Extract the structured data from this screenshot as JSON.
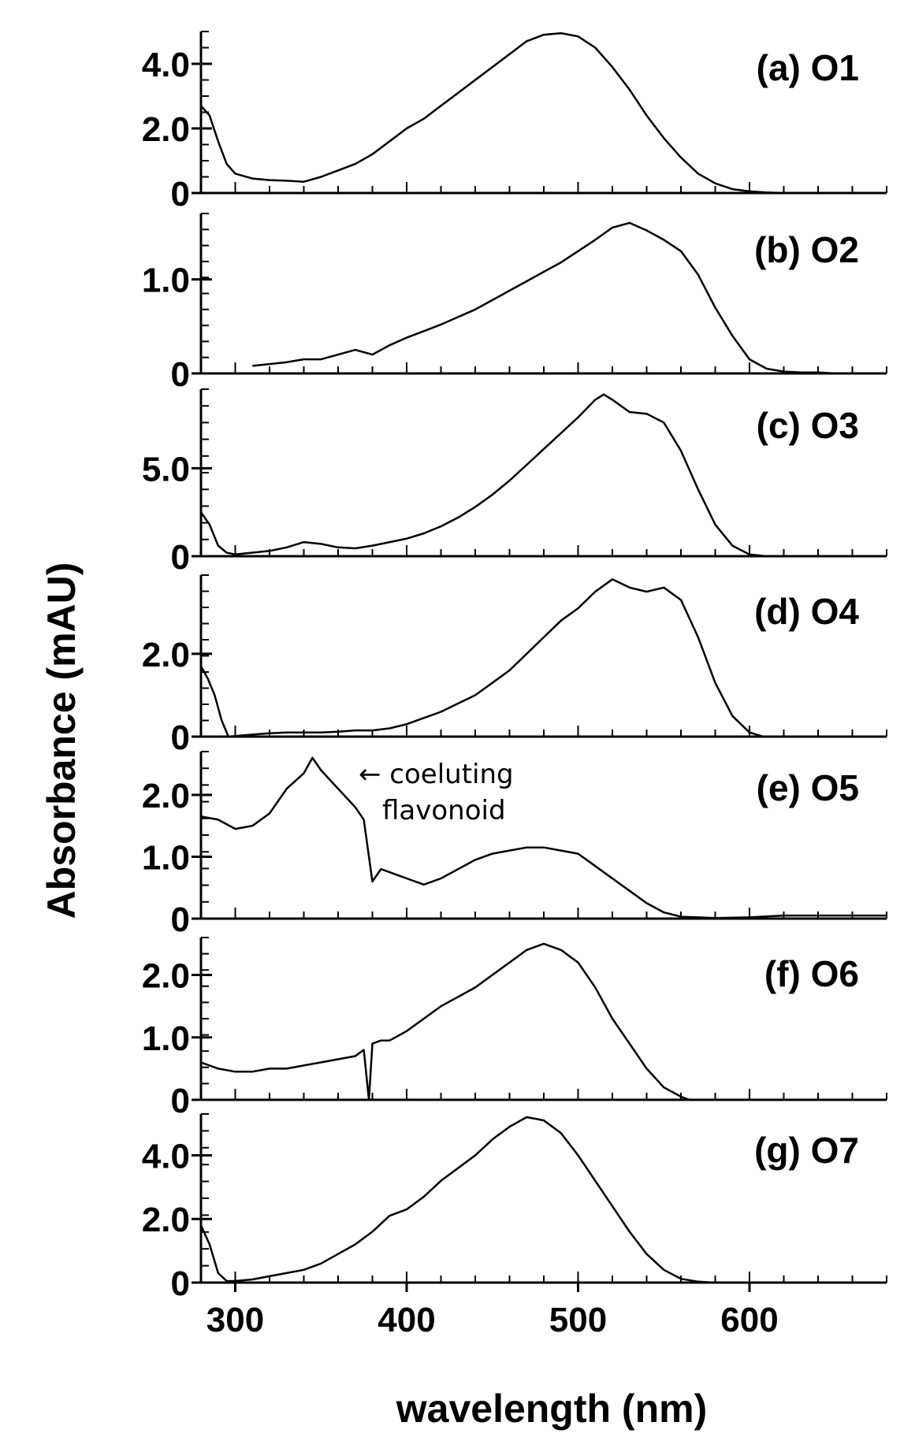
{
  "chart_data": {
    "type": "line",
    "xlabel": "wavelength (nm)",
    "ylabel": "Absorbance (mAU)",
    "xlim": [
      280,
      680
    ],
    "x_ticks": [
      300,
      400,
      500,
      600
    ],
    "line_color": "#000000",
    "panels": [
      {
        "label": "(a) O1",
        "ylim": [
          0,
          5.0
        ],
        "y_ticks": [
          {
            "v": 0,
            "t": "0"
          },
          {
            "v": 2.0,
            "t": "2.0"
          },
          {
            "v": 4.0,
            "t": "4.0"
          }
        ],
        "series": [
          {
            "x": [
              280,
              285,
              290,
              295,
              300,
              310,
              320,
              330,
              340,
              350,
              360,
              370,
              380,
              390,
              400,
              410,
              420,
              430,
              440,
              450,
              460,
              470,
              480,
              490,
              500,
              510,
              520,
              530,
              540,
              550,
              560,
              570,
              580,
              590,
              600,
              610,
              620
            ],
            "y": [
              2.7,
              2.4,
              1.6,
              0.9,
              0.6,
              0.45,
              0.4,
              0.38,
              0.35,
              0.5,
              0.7,
              0.9,
              1.2,
              1.6,
              2.0,
              2.3,
              2.7,
              3.1,
              3.5,
              3.9,
              4.3,
              4.7,
              4.9,
              4.95,
              4.85,
              4.5,
              3.9,
              3.2,
              2.4,
              1.7,
              1.1,
              0.6,
              0.3,
              0.12,
              0.05,
              0.02,
              0.0
            ]
          }
        ]
      },
      {
        "label": "(b) O2",
        "ylim": [
          0,
          1.7
        ],
        "y_ticks": [
          {
            "v": 0,
            "t": "0"
          },
          {
            "v": 1.0,
            "t": "1.0"
          }
        ],
        "series": [
          {
            "x": [
              310,
              320,
              330,
              340,
              350,
              360,
              370,
              380,
              390,
              400,
              410,
              420,
              430,
              440,
              450,
              460,
              470,
              480,
              490,
              500,
              510,
              520,
              530,
              540,
              550,
              560,
              570,
              580,
              590,
              600,
              610,
              620,
              630,
              640,
              650,
              660,
              670
            ],
            "y": [
              0.08,
              0.1,
              0.12,
              0.15,
              0.15,
              0.2,
              0.25,
              0.2,
              0.3,
              0.38,
              0.45,
              0.52,
              0.6,
              0.68,
              0.78,
              0.88,
              0.98,
              1.08,
              1.18,
              1.3,
              1.42,
              1.55,
              1.6,
              1.52,
              1.42,
              1.3,
              1.05,
              0.7,
              0.4,
              0.15,
              0.05,
              0.02,
              0.01,
              0.01,
              0.0,
              0.0,
              0.0
            ]
          }
        ]
      },
      {
        "label": "(c) O3",
        "ylim": [
          0,
          9.5
        ],
        "y_ticks": [
          {
            "v": 0,
            "t": "0"
          },
          {
            "v": 5.0,
            "t": "5.0"
          }
        ],
        "series": [
          {
            "x": [
              280,
              285,
              290,
              295,
              300,
              310,
              320,
              330,
              340,
              350,
              360,
              370,
              380,
              390,
              400,
              410,
              420,
              430,
              440,
              450,
              460,
              470,
              480,
              490,
              500,
              510,
              515,
              520,
              530,
              540,
              550,
              560,
              570,
              580,
              590,
              600,
              610
            ],
            "y": [
              2.5,
              1.8,
              0.6,
              0.2,
              0.1,
              0.2,
              0.3,
              0.5,
              0.8,
              0.7,
              0.5,
              0.45,
              0.6,
              0.8,
              1.0,
              1.3,
              1.7,
              2.2,
              2.8,
              3.5,
              4.3,
              5.2,
              6.1,
              7.0,
              7.9,
              8.9,
              9.2,
              8.9,
              8.2,
              8.1,
              7.6,
              6.0,
              3.8,
              1.8,
              0.6,
              0.1,
              0.0
            ]
          }
        ]
      },
      {
        "label": "(d) O4",
        "ylim": [
          0,
          3.9
        ],
        "y_ticks": [
          {
            "v": 0,
            "t": "0"
          },
          {
            "v": 2.0,
            "t": "2.0"
          }
        ],
        "series": [
          {
            "x": [
              280,
              284,
              288,
              292,
              296,
              310,
              320,
              330,
              340,
              350,
              360,
              370,
              380,
              390,
              400,
              410,
              420,
              430,
              440,
              450,
              460,
              470,
              480,
              490,
              500,
              510,
              520,
              530,
              540,
              550,
              560,
              570,
              580,
              590,
              600,
              608
            ],
            "y": [
              1.7,
              1.4,
              1.0,
              0.4,
              0.0,
              0.05,
              0.08,
              0.1,
              0.1,
              0.1,
              0.12,
              0.15,
              0.15,
              0.2,
              0.3,
              0.45,
              0.6,
              0.8,
              1.0,
              1.3,
              1.6,
              2.0,
              2.4,
              2.8,
              3.1,
              3.5,
              3.8,
              3.6,
              3.5,
              3.6,
              3.3,
              2.4,
              1.3,
              0.5,
              0.1,
              0.0
            ]
          }
        ]
      },
      {
        "label": "(e) O5",
        "ylim": [
          0,
          2.7
        ],
        "y_ticks": [
          {
            "v": 0,
            "t": "0"
          },
          {
            "v": 1.0,
            "t": "1.0"
          },
          {
            "v": 2.0,
            "t": "2.0"
          }
        ],
        "series": [
          {
            "x": [
              280,
              290,
              300,
              310,
              320,
              330,
              340,
              345,
              350,
              360,
              370,
              375,
              380,
              385,
              390,
              400,
              410,
              420,
              430,
              440,
              450,
              460,
              470,
              480,
              490,
              500,
              510,
              520,
              530,
              540,
              550,
              560,
              570,
              580,
              600,
              620,
              640,
              660,
              680
            ],
            "y": [
              1.65,
              1.6,
              1.45,
              1.5,
              1.7,
              2.1,
              2.35,
              2.6,
              2.4,
              2.1,
              1.8,
              1.6,
              0.6,
              0.8,
              0.75,
              0.65,
              0.55,
              0.65,
              0.8,
              0.95,
              1.05,
              1.1,
              1.15,
              1.15,
              1.1,
              1.05,
              0.85,
              0.65,
              0.45,
              0.25,
              0.1,
              0.03,
              0.02,
              0.01,
              0.02,
              0.05,
              0.05,
              0.05,
              0.05
            ]
          }
        ]
      },
      {
        "label": "(f) O6",
        "ylim": [
          0,
          2.6
        ],
        "y_ticks": [
          {
            "v": 0,
            "t": "0"
          },
          {
            "v": 1.0,
            "t": "1.0"
          },
          {
            "v": 2.0,
            "t": "2.0"
          }
        ],
        "series": [
          {
            "x": [
              280,
              290,
              300,
              310,
              320,
              330,
              340,
              350,
              360,
              370,
              375,
              378,
              380,
              385,
              390,
              400,
              410,
              420,
              430,
              440,
              450,
              460,
              470,
              480,
              490,
              500,
              510,
              520,
              530,
              540,
              550,
              560,
              565
            ],
            "y": [
              0.6,
              0.5,
              0.45,
              0.45,
              0.5,
              0.5,
              0.55,
              0.6,
              0.65,
              0.7,
              0.8,
              0.0,
              0.9,
              0.95,
              0.95,
              1.1,
              1.3,
              1.5,
              1.65,
              1.8,
              2.0,
              2.2,
              2.4,
              2.5,
              2.4,
              2.2,
              1.8,
              1.3,
              0.9,
              0.5,
              0.2,
              0.05,
              0.0
            ]
          }
        ]
      },
      {
        "label": "(g) O7",
        "ylim": [
          0,
          5.3
        ],
        "y_ticks": [
          {
            "v": 0,
            "t": "0"
          },
          {
            "v": 2.0,
            "t": "2.0"
          },
          {
            "v": 4.0,
            "t": "4.0"
          }
        ],
        "series": [
          {
            "x": [
              280,
              285,
              290,
              295,
              300,
              310,
              320,
              330,
              340,
              350,
              360,
              370,
              380,
              390,
              400,
              410,
              420,
              430,
              440,
              450,
              460,
              470,
              480,
              490,
              500,
              510,
              520,
              530,
              540,
              550,
              560,
              570,
              580
            ],
            "y": [
              1.8,
              1.2,
              0.3,
              0.05,
              0.05,
              0.1,
              0.2,
              0.3,
              0.4,
              0.6,
              0.9,
              1.2,
              1.6,
              2.1,
              2.3,
              2.7,
              3.2,
              3.6,
              4.0,
              4.5,
              4.9,
              5.2,
              5.1,
              4.7,
              4.0,
              3.2,
              2.4,
              1.6,
              0.9,
              0.4,
              0.12,
              0.03,
              0.0
            ]
          }
        ]
      }
    ],
    "annotations": [
      {
        "panel": 4,
        "lines": [
          "← coeluting",
          "flavonoid"
        ]
      }
    ]
  }
}
